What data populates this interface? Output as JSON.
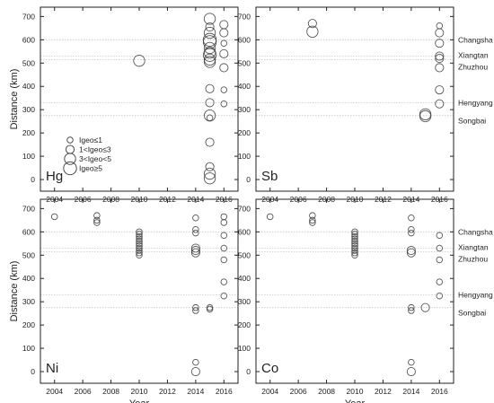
{
  "chart_data": {
    "type": "scatter",
    "xlabel": "Year",
    "ylabel": "Distance (km)",
    "xlim": [
      2003,
      2017
    ],
    "ylim": [
      -50,
      740
    ],
    "xticks": [
      "2004",
      "2006",
      "2008",
      "2010",
      "2012",
      "2014",
      "2016"
    ],
    "yticks": [
      "0",
      "100",
      "200",
      "300",
      "400",
      "500",
      "600",
      "700"
    ],
    "grid": false,
    "reference_lines": [
      {
        "y": 600,
        "label": "Changsha"
      },
      {
        "y": 530,
        "label": "Xiangtan"
      },
      {
        "y": 515,
        "label": "Zhuzhou"
      },
      {
        "y": 330,
        "label": "Hengyang"
      },
      {
        "y": 275,
        "label": "Songbai"
      }
    ],
    "size_legend": {
      "placement": "lower-left",
      "items": [
        {
          "label": "Igeo≤1",
          "class": 1
        },
        {
          "label": "1<Igeo≤3",
          "class": 2
        },
        {
          "label": "3<Igeo<5",
          "class": 3
        },
        {
          "label": "Igeo≥5",
          "class": 4
        }
      ]
    },
    "panels": [
      {
        "name": "Hg",
        "points": [
          {
            "x": 2010,
            "y": 510,
            "size": 3
          },
          {
            "x": 2015,
            "y": 690,
            "size": 3
          },
          {
            "x": 2015,
            "y": 655,
            "size": 2
          },
          {
            "x": 2015,
            "y": 630,
            "size": 3
          },
          {
            "x": 2015,
            "y": 600,
            "size": 4
          },
          {
            "x": 2015,
            "y": 590,
            "size": 4
          },
          {
            "x": 2015,
            "y": 565,
            "size": 3
          },
          {
            "x": 2015,
            "y": 545,
            "size": 3
          },
          {
            "x": 2015,
            "y": 535,
            "size": 4
          },
          {
            "x": 2015,
            "y": 515,
            "size": 3
          },
          {
            "x": 2015,
            "y": 505,
            "size": 3
          },
          {
            "x": 2015,
            "y": 390,
            "size": 2
          },
          {
            "x": 2015,
            "y": 330,
            "size": 2
          },
          {
            "x": 2015,
            "y": 275,
            "size": 3
          },
          {
            "x": 2015,
            "y": 265,
            "size": 1
          },
          {
            "x": 2015,
            "y": 160,
            "size": 2
          },
          {
            "x": 2015,
            "y": 55,
            "size": 2
          },
          {
            "x": 2015,
            "y": 25,
            "size": 3
          },
          {
            "x": 2015,
            "y": 5,
            "size": 3
          },
          {
            "x": 2016,
            "y": 665,
            "size": 2
          },
          {
            "x": 2016,
            "y": 630,
            "size": 2
          },
          {
            "x": 2016,
            "y": 585,
            "size": 1
          },
          {
            "x": 2016,
            "y": 540,
            "size": 2
          },
          {
            "x": 2016,
            "y": 480,
            "size": 2
          },
          {
            "x": 2016,
            "y": 385,
            "size": 1
          },
          {
            "x": 2016,
            "y": 325,
            "size": 1
          }
        ]
      },
      {
        "name": "Sb",
        "points": [
          {
            "x": 2007,
            "y": 670,
            "size": 2
          },
          {
            "x": 2007,
            "y": 635,
            "size": 3
          },
          {
            "x": 2015,
            "y": 280,
            "size": 3
          },
          {
            "x": 2015,
            "y": 272,
            "size": 3
          },
          {
            "x": 2016,
            "y": 660,
            "size": 1
          },
          {
            "x": 2016,
            "y": 630,
            "size": 2
          },
          {
            "x": 2016,
            "y": 585,
            "size": 2
          },
          {
            "x": 2016,
            "y": 530,
            "size": 2
          },
          {
            "x": 2016,
            "y": 520,
            "size": 2
          },
          {
            "x": 2016,
            "y": 480,
            "size": 2
          },
          {
            "x": 2016,
            "y": 385,
            "size": 2
          },
          {
            "x": 2016,
            "y": 325,
            "size": 2
          }
        ]
      },
      {
        "name": "Ni",
        "points": [
          {
            "x": 2004,
            "y": 665,
            "size": 1
          },
          {
            "x": 2007,
            "y": 670,
            "size": 1
          },
          {
            "x": 2007,
            "y": 650,
            "size": 1
          },
          {
            "x": 2007,
            "y": 640,
            "size": 1
          },
          {
            "x": 2010,
            "y": 600,
            "size": 1
          },
          {
            "x": 2010,
            "y": 590,
            "size": 1
          },
          {
            "x": 2010,
            "y": 580,
            "size": 1
          },
          {
            "x": 2010,
            "y": 570,
            "size": 1
          },
          {
            "x": 2010,
            "y": 560,
            "size": 1
          },
          {
            "x": 2010,
            "y": 550,
            "size": 1
          },
          {
            "x": 2010,
            "y": 540,
            "size": 1
          },
          {
            "x": 2010,
            "y": 530,
            "size": 1
          },
          {
            "x": 2010,
            "y": 520,
            "size": 1
          },
          {
            "x": 2010,
            "y": 510,
            "size": 1
          },
          {
            "x": 2010,
            "y": 500,
            "size": 1
          },
          {
            "x": 2014,
            "y": 660,
            "size": 1
          },
          {
            "x": 2014,
            "y": 610,
            "size": 1
          },
          {
            "x": 2014,
            "y": 595,
            "size": 1
          },
          {
            "x": 2014,
            "y": 530,
            "size": 2
          },
          {
            "x": 2014,
            "y": 520,
            "size": 2
          },
          {
            "x": 2014,
            "y": 510,
            "size": 2
          },
          {
            "x": 2014,
            "y": 275,
            "size": 1
          },
          {
            "x": 2014,
            "y": 262,
            "size": 1
          },
          {
            "x": 2014,
            "y": 40,
            "size": 1
          },
          {
            "x": 2014,
            "y": 0,
            "size": 2
          },
          {
            "x": 2015,
            "y": 275,
            "size": 1
          },
          {
            "x": 2015,
            "y": 268,
            "size": 1
          },
          {
            "x": 2016,
            "y": 665,
            "size": 1
          },
          {
            "x": 2016,
            "y": 640,
            "size": 1
          },
          {
            "x": 2016,
            "y": 585,
            "size": 1
          },
          {
            "x": 2016,
            "y": 530,
            "size": 1
          },
          {
            "x": 2016,
            "y": 480,
            "size": 1
          },
          {
            "x": 2016,
            "y": 385,
            "size": 1
          },
          {
            "x": 2016,
            "y": 325,
            "size": 1
          }
        ]
      },
      {
        "name": "Co",
        "points": [
          {
            "x": 2004,
            "y": 665,
            "size": 1
          },
          {
            "x": 2007,
            "y": 670,
            "size": 1
          },
          {
            "x": 2007,
            "y": 650,
            "size": 1
          },
          {
            "x": 2007,
            "y": 640,
            "size": 1
          },
          {
            "x": 2010,
            "y": 600,
            "size": 1
          },
          {
            "x": 2010,
            "y": 590,
            "size": 1
          },
          {
            "x": 2010,
            "y": 580,
            "size": 1
          },
          {
            "x": 2010,
            "y": 570,
            "size": 1
          },
          {
            "x": 2010,
            "y": 560,
            "size": 1
          },
          {
            "x": 2010,
            "y": 550,
            "size": 1
          },
          {
            "x": 2010,
            "y": 540,
            "size": 1
          },
          {
            "x": 2010,
            "y": 530,
            "size": 1
          },
          {
            "x": 2010,
            "y": 520,
            "size": 1
          },
          {
            "x": 2010,
            "y": 510,
            "size": 1
          },
          {
            "x": 2010,
            "y": 500,
            "size": 1
          },
          {
            "x": 2014,
            "y": 660,
            "size": 1
          },
          {
            "x": 2014,
            "y": 610,
            "size": 1
          },
          {
            "x": 2014,
            "y": 595,
            "size": 1
          },
          {
            "x": 2014,
            "y": 520,
            "size": 2
          },
          {
            "x": 2014,
            "y": 510,
            "size": 2
          },
          {
            "x": 2014,
            "y": 275,
            "size": 1
          },
          {
            "x": 2014,
            "y": 262,
            "size": 1
          },
          {
            "x": 2014,
            "y": 40,
            "size": 1
          },
          {
            "x": 2014,
            "y": 0,
            "size": 2
          },
          {
            "x": 2015,
            "y": 275,
            "size": 2
          },
          {
            "x": 2016,
            "y": 585,
            "size": 1
          },
          {
            "x": 2016,
            "y": 530,
            "size": 1
          },
          {
            "x": 2016,
            "y": 480,
            "size": 1
          },
          {
            "x": 2016,
            "y": 385,
            "size": 1
          },
          {
            "x": 2016,
            "y": 325,
            "size": 1
          }
        ]
      }
    ]
  },
  "colors": {
    "marker": "#3a3a3a",
    "reference_line": "#c8c8c8",
    "axis": "#222222"
  }
}
